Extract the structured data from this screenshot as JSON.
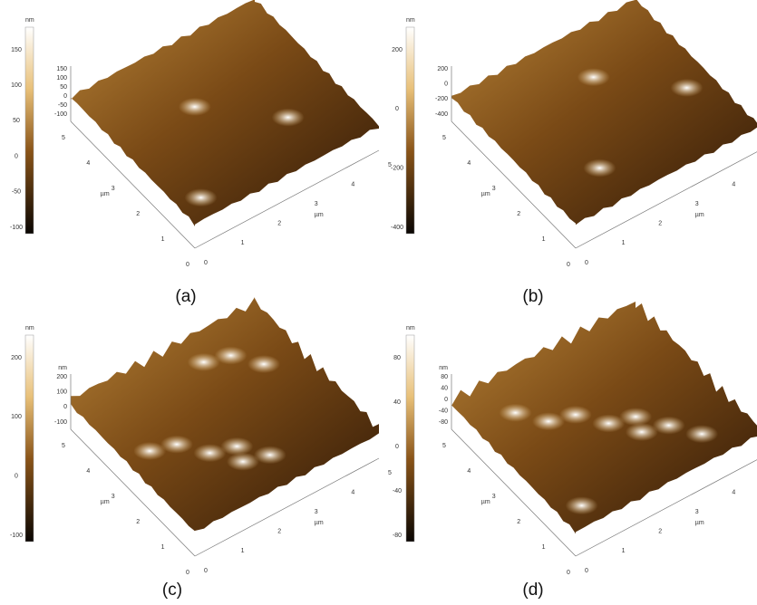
{
  "panels": [
    {
      "label": "(a)",
      "colorbar": {
        "unit": "nm",
        "ticks": [
          "150",
          "100",
          "50",
          "0",
          "-50",
          "-100"
        ]
      },
      "z_axis": {
        "ticks": [
          "150",
          "100",
          "50",
          "0",
          "-50",
          "-100"
        ]
      },
      "x_axis": {
        "unit": "µm",
        "ticks": [
          "0",
          "1",
          "2",
          "3",
          "4",
          "5"
        ]
      },
      "y_axis": {
        "unit": "µm",
        "ticks": [
          "0",
          "1",
          "2",
          "3",
          "4",
          "5"
        ]
      }
    },
    {
      "label": "(b)",
      "colorbar": {
        "unit": "nm",
        "ticks": [
          "200",
          "0",
          "-200",
          "-400"
        ]
      },
      "z_axis": {
        "ticks": [
          "200",
          "0",
          "-200",
          "-400"
        ]
      },
      "x_axis": {
        "unit": "µm",
        "ticks": [
          "0",
          "1",
          "2",
          "3",
          "4",
          "5"
        ]
      },
      "y_axis": {
        "unit": "µm",
        "ticks": [
          "0",
          "1",
          "2",
          "3",
          "4",
          "5"
        ]
      }
    },
    {
      "label": "(c)",
      "colorbar": {
        "unit": "nm",
        "ticks": [
          "200",
          "100",
          "0",
          "-100"
        ]
      },
      "z_axis": {
        "unit": "nm",
        "ticks": [
          "200",
          "100",
          "0",
          "-100"
        ]
      },
      "x_axis": {
        "unit": "µm",
        "ticks": [
          "0",
          "1",
          "2",
          "3",
          "4",
          "5"
        ]
      },
      "y_axis": {
        "unit": "µm",
        "ticks": [
          "0",
          "1",
          "2",
          "3",
          "4",
          "5"
        ]
      }
    },
    {
      "label": "(d)",
      "colorbar": {
        "unit": "nm",
        "ticks": [
          "80",
          "40",
          "0",
          "-40",
          "-80"
        ]
      },
      "z_axis": {
        "unit": "nm",
        "ticks": [
          "80",
          "40",
          "0",
          "-40",
          "-80"
        ]
      },
      "x_axis": {
        "unit": "µm",
        "ticks": [
          "0",
          "1",
          "2",
          "3",
          "4",
          "5"
        ]
      },
      "y_axis": {
        "unit": "µm",
        "ticks": [
          "0",
          "1",
          "2",
          "3",
          "4",
          "5"
        ]
      }
    }
  ]
}
